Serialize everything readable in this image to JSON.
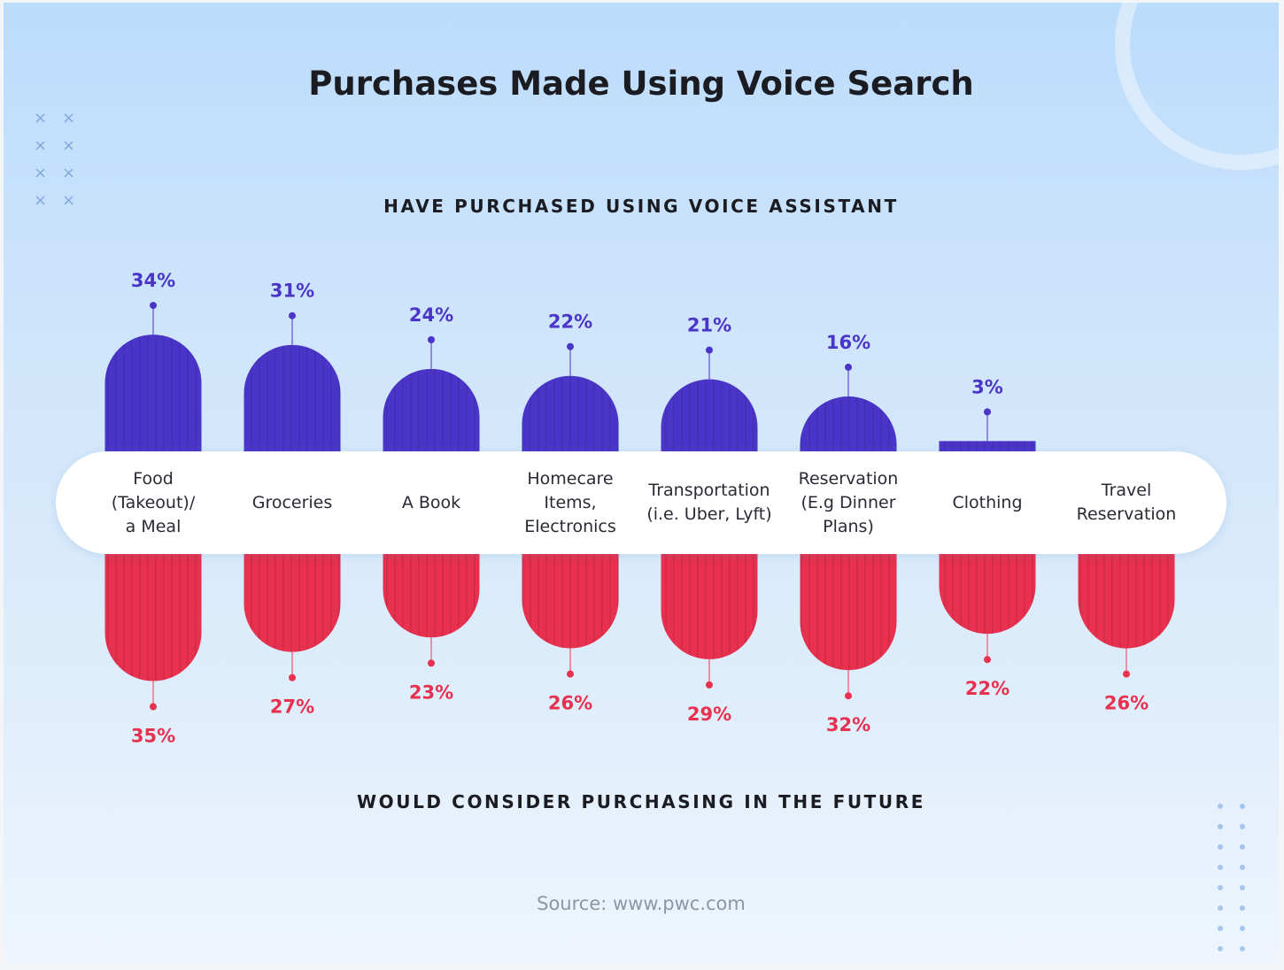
{
  "chart_data": {
    "type": "bar",
    "title": "Purchases Made Using Voice Search",
    "categories": [
      "Food\n(Takeout)/\na Meal",
      "Groceries",
      "A Book",
      "Homecare\nItems,\nElectronics",
      "Transportation\n(i.e. Uber, Lyft)",
      "Reservation\n(E.g Dinner\nPlans)",
      "Clothing",
      "Travel\nReservation"
    ],
    "series": [
      {
        "name": "HAVE PURCHASED USING VOICE ASSISTANT",
        "color": "#4b35c9",
        "values": [
          34,
          31,
          24,
          22,
          21,
          16,
          3,
          null
        ],
        "labels": [
          "34%",
          "31%",
          "24%",
          "22%",
          "21%",
          "16%",
          "3%",
          ""
        ]
      },
      {
        "name": "WOULD CONSIDER PURCHASING IN THE FUTURE",
        "color": "#e8304f",
        "values": [
          35,
          27,
          23,
          26,
          29,
          32,
          22,
          26
        ],
        "labels": [
          "35%",
          "27%",
          "23%",
          "26%",
          "29%",
          "32%",
          "22%",
          "26%"
        ]
      }
    ],
    "source": "Source: www.pwc.com"
  }
}
